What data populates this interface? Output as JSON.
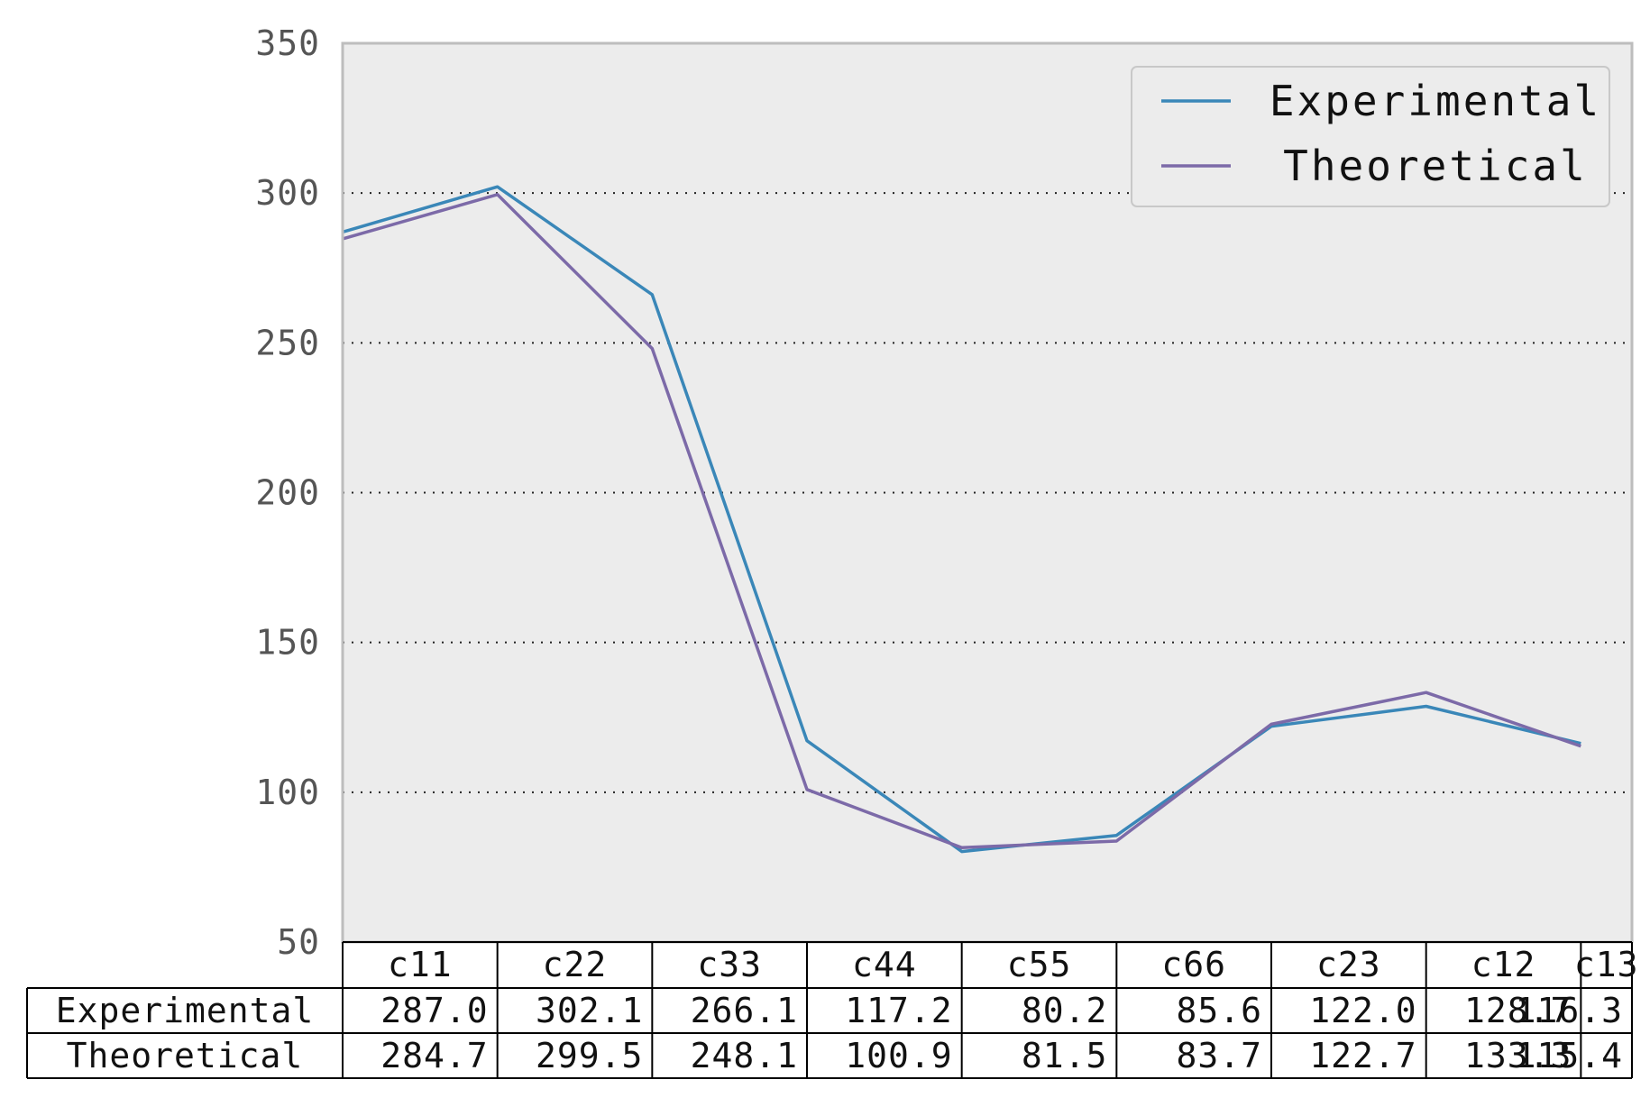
{
  "chart_data": {
    "type": "line",
    "title": "",
    "xlabel": "",
    "ylabel": "",
    "categories": [
      "c11",
      "c22",
      "c33",
      "c44",
      "c55",
      "c66",
      "c23",
      "c12",
      "c13"
    ],
    "series": [
      {
        "name": "Experimental",
        "color": "#3a87b8",
        "values": [
          287.0,
          302.1,
          266.1,
          117.2,
          80.2,
          85.6,
          122.0,
          128.7,
          116.3
        ]
      },
      {
        "name": "Theoretical",
        "color": "#7c6aa8",
        "values": [
          284.7,
          299.5,
          248.1,
          100.9,
          81.5,
          83.7,
          122.7,
          133.3,
          115.4
        ]
      }
    ],
    "table": {
      "rows": [
        {
          "label": "Experimental",
          "cells": [
            "287.0",
            "302.1",
            "266.1",
            "117.2",
            "80.2",
            "85.6",
            "122.0",
            "128.7",
            "116.3"
          ]
        },
        {
          "label": "Theoretical",
          "cells": [
            "284.7",
            "299.5",
            "248.1",
            "100.9",
            "81.5",
            "83.7",
            "122.7",
            "133.3",
            "115.4"
          ]
        }
      ]
    },
    "ylim": [
      50,
      350
    ],
    "yticks": [
      50,
      100,
      150,
      200,
      250,
      300,
      350
    ],
    "ytick_labels": [
      "50",
      "100",
      "150",
      "200",
      "250",
      "300",
      "350"
    ],
    "grid": "horizontal-dotted",
    "legend_position": "top-right",
    "background_color": "#ececec"
  }
}
